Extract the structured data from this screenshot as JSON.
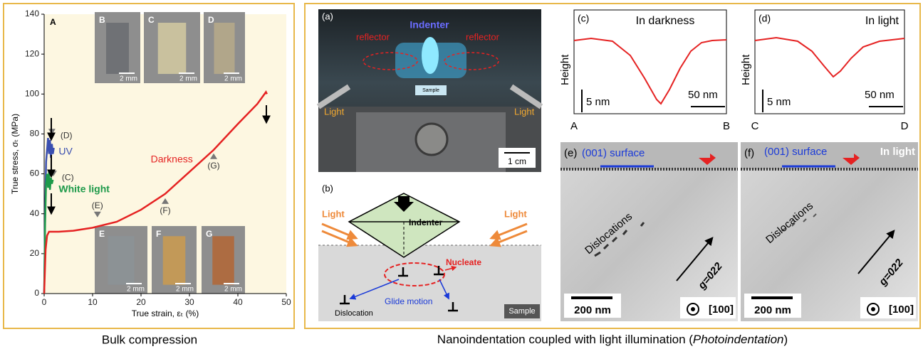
{
  "chart_data": {
    "type": "line",
    "panel_label": "A",
    "x_label": "True strain, εₜ (%)",
    "y_label": "True stress, σₜ (MPa)",
    "xlim": [
      0,
      50
    ],
    "ylim": [
      0,
      140
    ],
    "xticks": [
      0,
      10,
      20,
      30,
      40,
      50
    ],
    "yticks": [
      0,
      20,
      40,
      60,
      80,
      100,
      120,
      140
    ],
    "series": [
      {
        "name": "UV",
        "color": "#3a4fb0",
        "x": [
          0,
          0.2,
          0.4,
          0.6,
          0.8,
          1.0,
          1.2,
          1.4,
          1.6,
          1.8,
          2.0
        ],
        "values": [
          0,
          40,
          66,
          72,
          78,
          70,
          77,
          68,
          75,
          70,
          73
        ]
      },
      {
        "name": "White light",
        "color": "#1e9a4a",
        "x": [
          0,
          0.2,
          0.4,
          0.6,
          0.8,
          1.0,
          1.2,
          1.4,
          1.6,
          1.8
        ],
        "values": [
          0,
          35,
          55,
          60,
          53,
          61,
          52,
          58,
          55,
          57
        ]
      },
      {
        "name": "Darkness",
        "color": "#e52222",
        "x": [
          0,
          0.3,
          0.6,
          1,
          3,
          6,
          10,
          15,
          20,
          25,
          30,
          35,
          40,
          44,
          45.8,
          46
        ],
        "values": [
          0,
          22,
          29,
          31,
          31,
          31.5,
          33,
          36,
          42,
          50,
          61,
          72,
          85,
          95,
          101,
          100
        ]
      }
    ],
    "annotations": [
      {
        "label": "(D)",
        "x": 1.6,
        "y": 79
      },
      {
        "label": "(C)",
        "x": 1.9,
        "y": 58
      },
      {
        "label": "(E)",
        "x": 11,
        "y": 37.5
      },
      {
        "label": "(F)",
        "x": 25,
        "y": 48.5
      },
      {
        "label": "(G)",
        "x": 35,
        "y": 71
      }
    ],
    "insets": [
      {
        "label": "B",
        "scale_bar": "2 mm"
      },
      {
        "label": "C",
        "scale_bar": "2 mm"
      },
      {
        "label": "D",
        "scale_bar": "2 mm"
      },
      {
        "label": "E",
        "scale_bar": "2 mm"
      },
      {
        "label": "F",
        "scale_bar": "2 mm"
      },
      {
        "label": "G",
        "scale_bar": "2 mm"
      }
    ]
  },
  "caption_left": "Bulk compression",
  "caption_right": [
    "Nanoindentation coupled with light illumination (",
    "Photoindentation",
    ")"
  ],
  "panel_a": {
    "label": "(a)",
    "indenter": "Indenter",
    "reflector": "reflector",
    "light": "Light",
    "sample": "Sample",
    "scale_bar": "1 cm"
  },
  "panel_b": {
    "label": "(b)",
    "light": "Light",
    "indenter": "Indenter",
    "nucleate": "Nucleate",
    "dislocation": "Dislocation",
    "glide": "Glide motion",
    "sample": "Sample"
  },
  "profiles": [
    {
      "label": "(c)",
      "title": "In darkness",
      "y_label": "Height",
      "height_bar": "5 nm",
      "width_bar": "50 nm",
      "start": "A",
      "end": "B"
    },
    {
      "label": "(d)",
      "title": "In light",
      "y_label": "Height",
      "height_bar": "5 nm",
      "width_bar": "50 nm",
      "start": "C",
      "end": "D"
    }
  ],
  "tem": [
    {
      "label": "(e)",
      "surface": "(001) surface",
      "dislocations": "Dislocations",
      "g_vector": "g=022",
      "scale_bar": "200 nm",
      "zone_axis": "[100]"
    },
    {
      "label": "(f)",
      "surface": "(001) surface",
      "condition": "In light",
      "dislocations": "Dislocations",
      "g_vector": "g=022",
      "scale_bar": "200 nm",
      "zone_axis": "[100]"
    }
  ]
}
